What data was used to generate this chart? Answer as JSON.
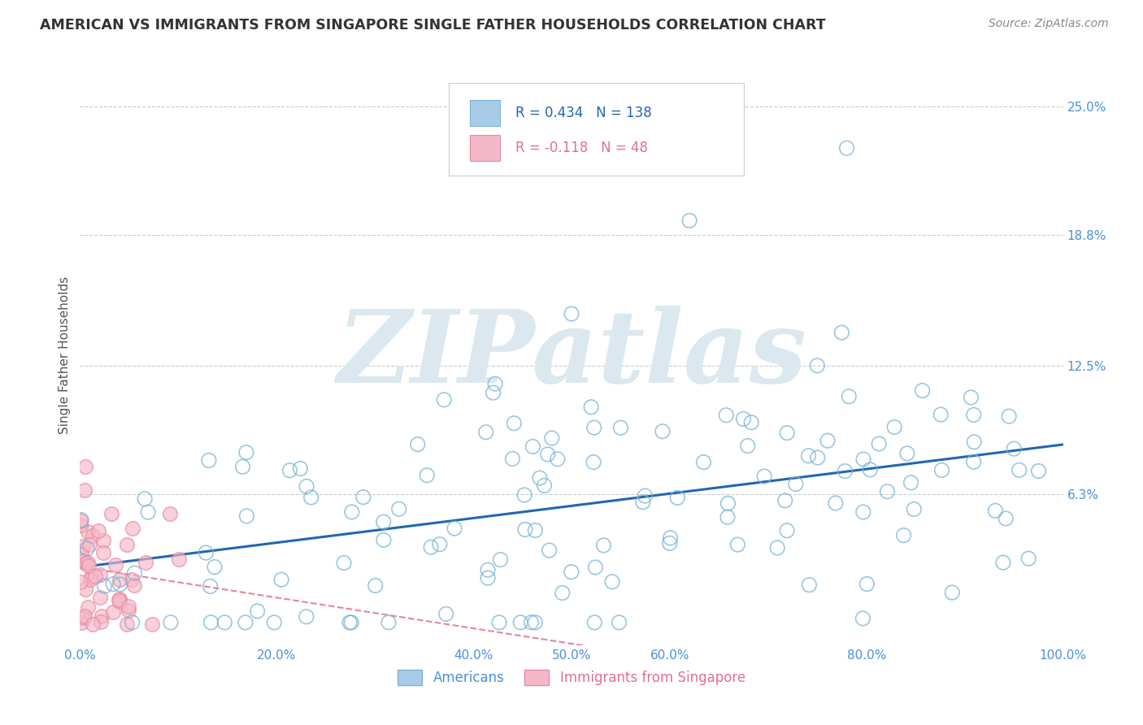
{
  "title": "AMERICAN VS IMMIGRANTS FROM SINGAPORE SINGLE FATHER HOUSEHOLDS CORRELATION CHART",
  "source": "Source: ZipAtlas.com",
  "ylabel": "Single Father Households",
  "ytick_labels": [
    "6.3%",
    "12.5%",
    "18.8%",
    "25.0%"
  ],
  "ytick_values": [
    0.063,
    0.125,
    0.188,
    0.25
  ],
  "xlim": [
    0.0,
    1.0
  ],
  "ylim": [
    -0.01,
    0.27
  ],
  "americans_R": 0.434,
  "americans_N": 138,
  "singapore_R": -0.118,
  "singapore_N": 48,
  "blue_color": "#a8cce8",
  "blue_edge_color": "#7ab3d8",
  "blue_line_color": "#2167b0",
  "pink_color": "#f4b8c8",
  "pink_edge_color": "#e888a0",
  "pink_line_color": "#e07090",
  "background_color": "#ffffff",
  "watermark_color": "#dce8f0",
  "grid_color": "#cccccc",
  "legend_border_color": "#cccccc",
  "tick_color": "#4a90d9",
  "title_color": "#333333",
  "source_color": "#888888",
  "ylabel_color": "#555555"
}
